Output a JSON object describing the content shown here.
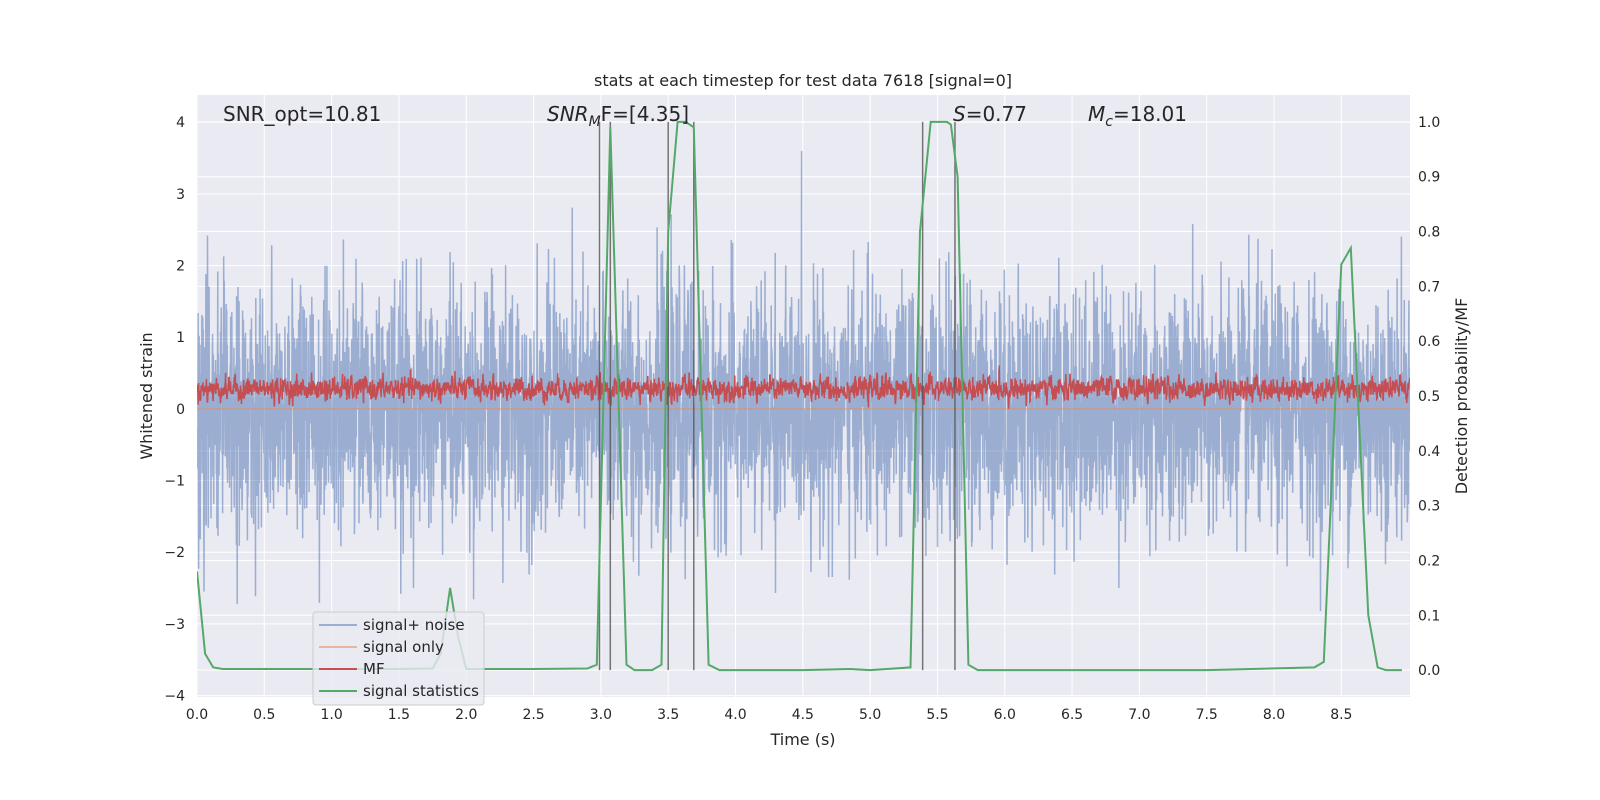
{
  "chart_data": {
    "type": "line",
    "title": "stats at each timestep for test data 7618 [signal=0]",
    "xlabel": "Time (s)",
    "ylabel": "Whitened strain",
    "ylabel_right": "Detection probability/MF",
    "xlim": [
      0,
      9.01
    ],
    "ylim": [
      -4.02,
      4.38
    ],
    "ylim_right": [
      -0.049,
      1.049
    ],
    "grid": true,
    "xticks": [
      "0.0",
      "0.5",
      "1.0",
      "1.5",
      "2.0",
      "2.5",
      "3.0",
      "3.5",
      "4.0",
      "4.5",
      "5.0",
      "5.5",
      "6.0",
      "6.5",
      "7.0",
      "7.5",
      "8.0",
      "8.5"
    ],
    "yticks": [
      "4",
      "3",
      "2",
      "1",
      "0",
      "−1",
      "−2",
      "−3",
      "−4"
    ],
    "yticks_right": [
      "1.0",
      "0.9",
      "0.8",
      "0.7",
      "0.6",
      "0.5",
      "0.4",
      "0.3",
      "0.2",
      "0.1",
      "0.0"
    ],
    "annotations": {
      "snr_opt": "SNR_opt=10.81",
      "snr_mf_base": "SNR",
      "snr_mf_sub": "M",
      "snr_mf_rest": "F=[4.35]",
      "s_var": "S",
      "s_rest": "=0.77",
      "mc_var": "M",
      "mc_sub": "c",
      "mc_rest": "=18.01"
    },
    "legend": {
      "placement": "lower-left",
      "entries": [
        "signal+ noise",
        "signal only",
        "MF",
        "signal statistics"
      ]
    },
    "colors": {
      "signal_noise": "#4c72b0",
      "signal_only": "#dd8452",
      "mf": "#c44e52",
      "signal_statistics": "#55a868",
      "detections": "#555555"
    },
    "series": [
      {
        "name": "signal+ noise",
        "axis": "left",
        "description_stats": {
          "mean": 0,
          "std": 0.85,
          "min": -3.6,
          "max": 3.6
        }
      },
      {
        "name": "signal only",
        "axis": "left",
        "x": [
          0,
          9.01
        ],
        "y": [
          0,
          0
        ]
      },
      {
        "name": "MF",
        "axis": "left",
        "description_stats": {
          "mean": 0.28,
          "min": 0.0,
          "max": 1.0
        }
      },
      {
        "name": "signal statistics",
        "axis": "right",
        "x": [
          0.0,
          0.06,
          0.12,
          0.19,
          0.5,
          1.0,
          1.5,
          1.75,
          1.81,
          1.88,
          1.94,
          2.0,
          2.5,
          2.9,
          2.97,
          3.07,
          3.19,
          3.25,
          3.38,
          3.45,
          3.5,
          3.57,
          3.63,
          3.69,
          3.8,
          3.88,
          4.5,
          4.85,
          5.0,
          5.3,
          5.37,
          5.45,
          5.57,
          5.6,
          5.65,
          5.73,
          5.8,
          6.5,
          7.5,
          8.3,
          8.37,
          8.5,
          8.57,
          8.7,
          8.77,
          8.83,
          8.95
        ],
        "y": [
          0.18,
          0.03,
          0.005,
          0.002,
          0.002,
          0.002,
          0.002,
          0.003,
          0.03,
          0.15,
          0.06,
          0.002,
          0.002,
          0.003,
          0.01,
          0.99,
          0.01,
          0.0,
          0.0,
          0.01,
          0.8,
          1.0,
          1.0,
          0.99,
          0.01,
          0.0,
          0.0,
          0.002,
          0.0,
          0.005,
          0.8,
          1.0,
          1.0,
          0.995,
          0.9,
          0.01,
          0.0,
          0.0,
          0.0,
          0.005,
          0.015,
          0.74,
          0.77,
          0.1,
          0.005,
          0.0,
          0.0
        ]
      }
    ],
    "detections": [
      2.99,
      3.07,
      3.5,
      3.69,
      5.39,
      5.63
    ]
  }
}
